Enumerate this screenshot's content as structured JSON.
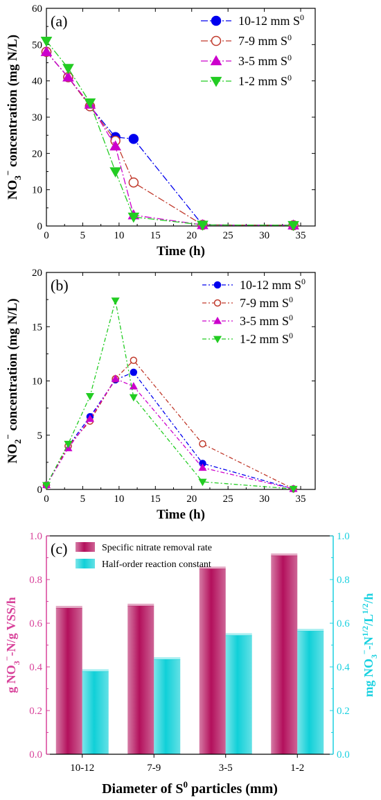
{
  "chart_data": [
    {
      "panel_label": "(a)",
      "type": "line",
      "xlabel": "Time (h)",
      "ylabel_main": "NO",
      "ylabel_sub": "3",
      "ylabel_sup": "−",
      "ylabel_rest": " concentration (mg N/L)",
      "xlim": [
        0,
        37
      ],
      "ylim": [
        0,
        60
      ],
      "xticks": [
        "0",
        "5",
        "10",
        "15",
        "20",
        "25",
        "30",
        "35"
      ],
      "yticks": [
        "0",
        "10",
        "20",
        "30",
        "40",
        "50",
        "60"
      ],
      "legend_position": "top-right",
      "series": [
        {
          "name": "10-12 mm S",
          "sup": "0",
          "color": "#0000ee",
          "marker": "circle",
          "filled": true,
          "dash": "10,3,2,3",
          "x": [
            0,
            3,
            6,
            9.5,
            12,
            21.5,
            34
          ],
          "y": [
            48,
            41,
            33,
            24.5,
            24,
            0.3,
            0.2
          ]
        },
        {
          "name": "7-9 mm S",
          "sup": "0",
          "color": "#c0392b",
          "marker": "circle",
          "filled": false,
          "dash": "10,3,2,3",
          "x": [
            0,
            3,
            6,
            9.5,
            12,
            21.5,
            34
          ],
          "y": [
            48,
            41,
            33,
            23.5,
            12,
            0.3,
            0.2
          ]
        },
        {
          "name": "3-5 mm S",
          "sup": "0",
          "color": "#cc00cc",
          "marker": "triangle-up",
          "filled": true,
          "dash": "10,3,2,3",
          "x": [
            0,
            3,
            6,
            9.5,
            12,
            21.5,
            34
          ],
          "y": [
            48,
            41,
            33.5,
            22,
            3,
            0.3,
            0.2
          ]
        },
        {
          "name": "1-2 mm S",
          "sup": "0",
          "color": "#22cc22",
          "marker": "triangle-down",
          "filled": true,
          "dash": "10,3,2,3",
          "x": [
            0,
            3,
            6,
            9.5,
            12,
            21.5,
            34
          ],
          "y": [
            51,
            43.5,
            34,
            15,
            2.5,
            0.3,
            0.2
          ]
        }
      ]
    },
    {
      "panel_label": "(b)",
      "type": "line",
      "xlabel": "Time (h)",
      "ylabel_main": "NO",
      "ylabel_sub": "2",
      "ylabel_sup": "−",
      "ylabel_rest": " concentration (mg N/L)",
      "xlim": [
        0,
        37
      ],
      "ylim": [
        0,
        20
      ],
      "xticks": [
        "0",
        "5",
        "10",
        "15",
        "20",
        "25",
        "30",
        "35"
      ],
      "yticks": [
        "0",
        "5",
        "10",
        "15",
        "20"
      ],
      "legend_position": "top-right",
      "series": [
        {
          "name": "10-12 mm S",
          "sup": "0",
          "color": "#0000ee",
          "marker": "circle",
          "filled": true,
          "dash": "6,3,2,3",
          "x": [
            0,
            3,
            6,
            9.5,
            12,
            21.5,
            34
          ],
          "y": [
            0.4,
            4.0,
            6.7,
            10.1,
            10.8,
            2.4,
            0.05
          ]
        },
        {
          "name": "7-9 mm S",
          "sup": "0",
          "color": "#c0392b",
          "marker": "circle",
          "filled": false,
          "dash": "6,3,2,3",
          "x": [
            0,
            3,
            6,
            9.5,
            12,
            21.5,
            34
          ],
          "y": [
            0.4,
            4.0,
            6.3,
            10.2,
            11.9,
            4.2,
            0.05
          ]
        },
        {
          "name": "3-5 mm S",
          "sup": "0",
          "color": "#cc00cc",
          "marker": "triangle-up",
          "filled": true,
          "dash": "6,3,2,3",
          "x": [
            0,
            3,
            6,
            9.5,
            12,
            21.5,
            34
          ],
          "y": [
            0.4,
            3.8,
            6.5,
            10.2,
            9.5,
            2.0,
            0.05
          ]
        },
        {
          "name": "1-2 mm S",
          "sup": "0",
          "color": "#22cc22",
          "marker": "triangle-down",
          "filled": true,
          "dash": "6,3,2,3",
          "x": [
            0,
            3,
            6,
            9.5,
            12,
            21.5,
            34
          ],
          "y": [
            0.4,
            4.2,
            8.6,
            17.4,
            8.5,
            0.7,
            0.05
          ]
        }
      ]
    },
    {
      "panel_label": "(c)",
      "type": "bar",
      "categories": [
        "10-12",
        "7-9",
        "3-5",
        "1-2"
      ],
      "xlabel_main": "Diameter of S",
      "xlabel_sup": "0",
      "xlabel_rest": " particles (mm)",
      "ylabel_left": {
        "a": "g NO",
        "b": "3",
        "c": "−",
        "d": "-N/g VSS/h"
      },
      "ylabel_right": {
        "a": "mg NO",
        "b": "3",
        "c": "−",
        "d": "-N",
        "e": "1/2",
        "f": "/L",
        "g": "1/2",
        "h": "/h"
      },
      "ylim": [
        0,
        1.0
      ],
      "yticks": [
        "0.0",
        "0.2",
        "0.4",
        "0.6",
        "0.8",
        "1.0"
      ],
      "left_axis_color": "#d8429a",
      "right_axis_color": "#1ad1e0",
      "legend_position": "top-left",
      "series": [
        {
          "name": "Specific nitrate removal rate",
          "color": "#b3105c",
          "values": [
            0.67,
            0.68,
            0.85,
            0.91
          ]
        },
        {
          "name": "Half-order reaction constant",
          "color": "#10d0d8",
          "values": [
            0.38,
            0.435,
            0.545,
            0.565
          ]
        }
      ]
    }
  ]
}
